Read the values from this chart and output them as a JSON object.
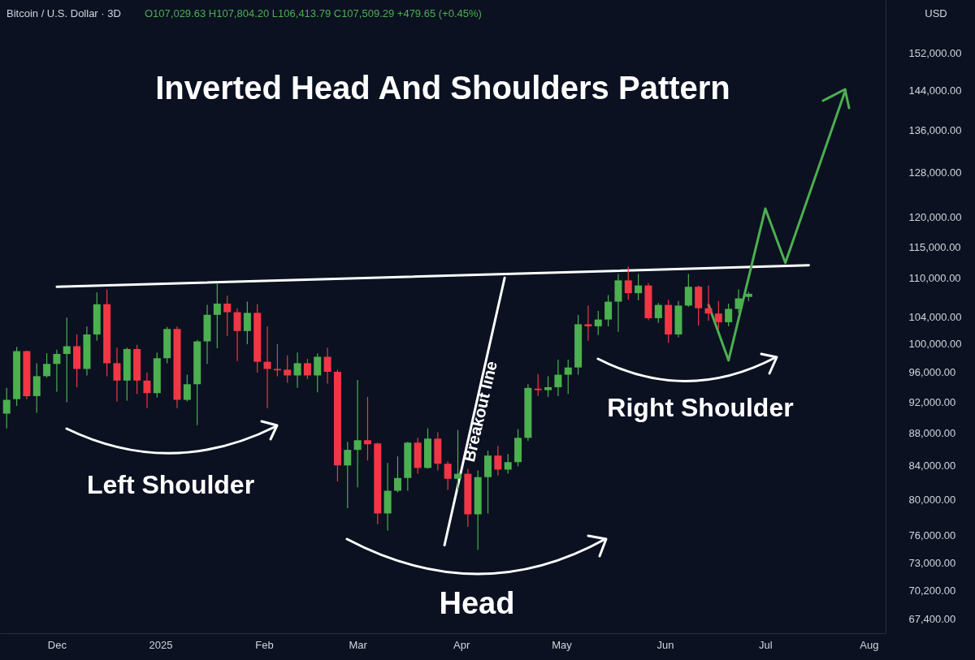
{
  "chart_data": {
    "type": "candlestick",
    "title": "Inverted Head And Shoulders Pattern",
    "subtitle": "Bitcoin / U.S. Dollar · 3D",
    "annotations": [
      "O107,029.63 H107,804.20 L106,413.79 C107,509.29 +479.65 (+0.45%)",
      "USD",
      "Left Shoulder",
      "Head",
      "Right Shoulder",
      "Breakout line"
    ],
    "x": [
      "2024-11-16",
      "2024-11-19",
      "2024-11-22",
      "2024-11-25",
      "2024-11-28",
      "2024-12-01",
      "2024-12-04",
      "2024-12-07",
      "2024-12-10",
      "2024-12-13",
      "2024-12-16",
      "2024-12-19",
      "2024-12-22",
      "2024-12-25",
      "2024-12-28",
      "2024-12-31",
      "2025-01-03",
      "2025-01-06",
      "2025-01-09",
      "2025-01-12",
      "2025-01-15",
      "2025-01-18",
      "2025-01-21",
      "2025-01-24",
      "2025-01-27",
      "2025-01-30",
      "2025-02-02",
      "2025-02-05",
      "2025-02-08",
      "2025-02-11",
      "2025-02-14",
      "2025-02-17",
      "2025-02-20",
      "2025-02-23",
      "2025-02-26",
      "2025-03-01",
      "2025-03-04",
      "2025-03-07",
      "2025-03-10",
      "2025-03-13",
      "2025-03-16",
      "2025-03-19",
      "2025-03-22",
      "2025-03-25",
      "2025-03-28",
      "2025-03-31",
      "2025-04-03",
      "2025-04-06",
      "2025-04-09",
      "2025-04-12",
      "2025-04-15",
      "2025-04-18",
      "2025-04-21",
      "2025-04-24",
      "2025-04-27",
      "2025-04-30",
      "2025-05-03",
      "2025-05-06",
      "2025-05-09",
      "2025-05-12",
      "2025-05-15",
      "2025-05-18",
      "2025-05-21",
      "2025-05-24",
      "2025-05-27",
      "2025-05-30",
      "2025-06-02",
      "2025-06-05",
      "2025-06-08",
      "2025-06-11",
      "2025-06-14",
      "2025-06-17",
      "2025-06-20",
      "2025-06-23",
      "2025-06-26"
    ],
    "ohlc": [
      [
        90500,
        93900,
        88600,
        92300
      ],
      [
        92400,
        99600,
        91500,
        99000
      ],
      [
        99000,
        99100,
        92400,
        92800
      ],
      [
        92800,
        97300,
        90600,
        95500
      ],
      [
        95500,
        98700,
        95300,
        97200
      ],
      [
        97200,
        99200,
        93400,
        98600
      ],
      [
        98600,
        103900,
        92000,
        99700
      ],
      [
        99700,
        101400,
        94000,
        96500
      ],
      [
        96500,
        102600,
        95600,
        101400
      ],
      [
        101400,
        107700,
        100500,
        105900
      ],
      [
        105900,
        108200,
        95500,
        97300
      ],
      [
        97300,
        99500,
        92100,
        94900
      ],
      [
        94900,
        99500,
        92200,
        99300
      ],
      [
        99300,
        99900,
        93100,
        94900
      ],
      [
        94900,
        96000,
        91200,
        93200
      ],
      [
        93200,
        98800,
        92600,
        98000
      ],
      [
        98000,
        102500,
        97300,
        102200
      ],
      [
        102200,
        102600,
        91200,
        92300
      ],
      [
        92300,
        95700,
        92100,
        94400
      ],
      [
        94400,
        100600,
        89000,
        100400
      ],
      [
        100400,
        105800,
        97200,
        104300
      ],
      [
        104300,
        109200,
        99400,
        106000
      ],
      [
        106000,
        107200,
        101200,
        104700
      ],
      [
        104700,
        105300,
        97600,
        101900
      ],
      [
        101900,
        106300,
        100000,
        104600
      ],
      [
        104600,
        105900,
        96000,
        97500
      ],
      [
        97500,
        102600,
        91200,
        96500
      ],
      [
        96500,
        100000,
        95500,
        96300
      ],
      [
        96400,
        98400,
        94600,
        95600
      ],
      [
        95600,
        98800,
        93900,
        97300
      ],
      [
        97300,
        97900,
        95100,
        95600
      ],
      [
        95600,
        98700,
        93300,
        98200
      ],
      [
        98200,
        99500,
        94500,
        96100
      ],
      [
        96100,
        96400,
        82100,
        84000
      ],
      [
        84000,
        86900,
        79000,
        85900
      ],
      [
        85900,
        95000,
        81400,
        87100
      ],
      [
        87100,
        92700,
        84600,
        86600
      ],
      [
        86700,
        86800,
        77200,
        78400
      ],
      [
        78400,
        84300,
        76500,
        81000
      ],
      [
        81000,
        85100,
        80800,
        82500
      ],
      [
        82500,
        86900,
        81000,
        86800
      ],
      [
        86800,
        87400,
        83000,
        83700
      ],
      [
        83700,
        88600,
        83600,
        87300
      ],
      [
        87300,
        88100,
        83400,
        84200
      ],
      [
        84200,
        84500,
        81100,
        82400
      ],
      [
        82400,
        88400,
        81100,
        83000
      ],
      [
        83000,
        83600,
        76900,
        78300
      ],
      [
        78300,
        83400,
        74400,
        82600
      ],
      [
        82600,
        85800,
        78400,
        85200
      ],
      [
        85200,
        86400,
        82800,
        83500
      ],
      [
        83500,
        85400,
        83000,
        84400
      ],
      [
        84400,
        88500,
        83900,
        87400
      ],
      [
        87400,
        94400,
        87000,
        93900
      ],
      [
        93800,
        95800,
        92800,
        93600
      ],
      [
        93600,
        95500,
        92700,
        94000
      ],
      [
        94000,
        97800,
        92800,
        95700
      ],
      [
        95700,
        97800,
        93100,
        96700
      ],
      [
        96700,
        104300,
        95700,
        102900
      ],
      [
        102900,
        105700,
        100500,
        102600
      ],
      [
        102600,
        104900,
        101300,
        103600
      ],
      [
        103600,
        107300,
        102600,
        106300
      ],
      [
        106300,
        110600,
        101800,
        109600
      ],
      [
        109600,
        111800,
        106600,
        107600
      ],
      [
        107600,
        110600,
        106500,
        108800
      ],
      [
        108800,
        109200,
        103500,
        103800
      ],
      [
        103800,
        106100,
        103100,
        105800
      ],
      [
        105800,
        106600,
        100200,
        101400
      ],
      [
        101400,
        106400,
        101000,
        105700
      ],
      [
        105700,
        110600,
        105500,
        108600
      ],
      [
        108600,
        108800,
        102700,
        105300
      ],
      [
        105300,
        108800,
        103400,
        104500
      ],
      [
        104500,
        106400,
        102200,
        103200
      ],
      [
        103200,
        106000,
        102600,
        105200
      ],
      [
        105200,
        108200,
        104600,
        106800
      ],
      [
        107029.63,
        107804.2,
        106413.79,
        107509.29
      ]
    ],
    "series": [
      {
        "type": "line",
        "color": "#ffffff",
        "x": [
          "2024-12-01",
          "2025-07-14"
        ],
        "values": [
          108600,
          112000
        ]
      },
      {
        "type": "line",
        "color": "#ffffff",
        "x": [
          "2025-03-27",
          "2025-04-14"
        ],
        "values": [
          74900,
          110000
        ]
      },
      {
        "type": "line",
        "color": "#4caf50",
        "x": [
          "2025-06-14",
          "2025-06-20",
          "2025-07-01",
          "2025-07-07",
          "2025-07-25"
        ],
        "values": [
          105800,
          97700,
          121500,
          112400,
          144100
        ]
      }
    ],
    "log": true,
    "xlim": [
      "2024-11-14",
      "2025-08-06"
    ],
    "xticks": [
      {
        "value": "2024-12-01",
        "label": "Dec"
      },
      {
        "value": "2025-01-01",
        "label": "2025"
      },
      {
        "value": "2025-02-01",
        "label": "Feb"
      },
      {
        "value": "2025-03-01",
        "label": "Mar"
      },
      {
        "value": "2025-04-01",
        "label": "Apr"
      },
      {
        "value": "2025-05-01",
        "label": "May"
      },
      {
        "value": "2025-06-01",
        "label": "Jun"
      },
      {
        "value": "2025-07-01",
        "label": "Jul"
      },
      {
        "value": "2025-08-01",
        "label": "Aug"
      }
    ],
    "ylim": [
      66000,
      164000
    ],
    "yticks": [
      {
        "value": 67400,
        "label": "67,400.00"
      },
      {
        "value": 70200,
        "label": "70,200.00"
      },
      {
        "value": 73000,
        "label": "73,000.00"
      },
      {
        "value": 76000,
        "label": "76,000.00"
      },
      {
        "value": 80000,
        "label": "80,000.00"
      },
      {
        "value": 84000,
        "label": "84,000.00"
      },
      {
        "value": 88000,
        "label": "88,000.00"
      },
      {
        "value": 92000,
        "label": "92,000.00"
      },
      {
        "value": 96000,
        "label": "96,000.00"
      },
      {
        "value": 100000,
        "label": "100,000.00"
      },
      {
        "value": 104000,
        "label": "104,000.00"
      },
      {
        "value": 110000,
        "label": "110,000.00"
      },
      {
        "value": 115000,
        "label": "115,000.00"
      },
      {
        "value": 120000,
        "label": "120,000.00"
      },
      {
        "value": 128000,
        "label": "128,000.00"
      },
      {
        "value": 136000,
        "label": "136,000.00"
      },
      {
        "value": 144000,
        "label": "144,000.00"
      },
      {
        "value": 152000,
        "label": "152,000.00"
      }
    ]
  }
}
